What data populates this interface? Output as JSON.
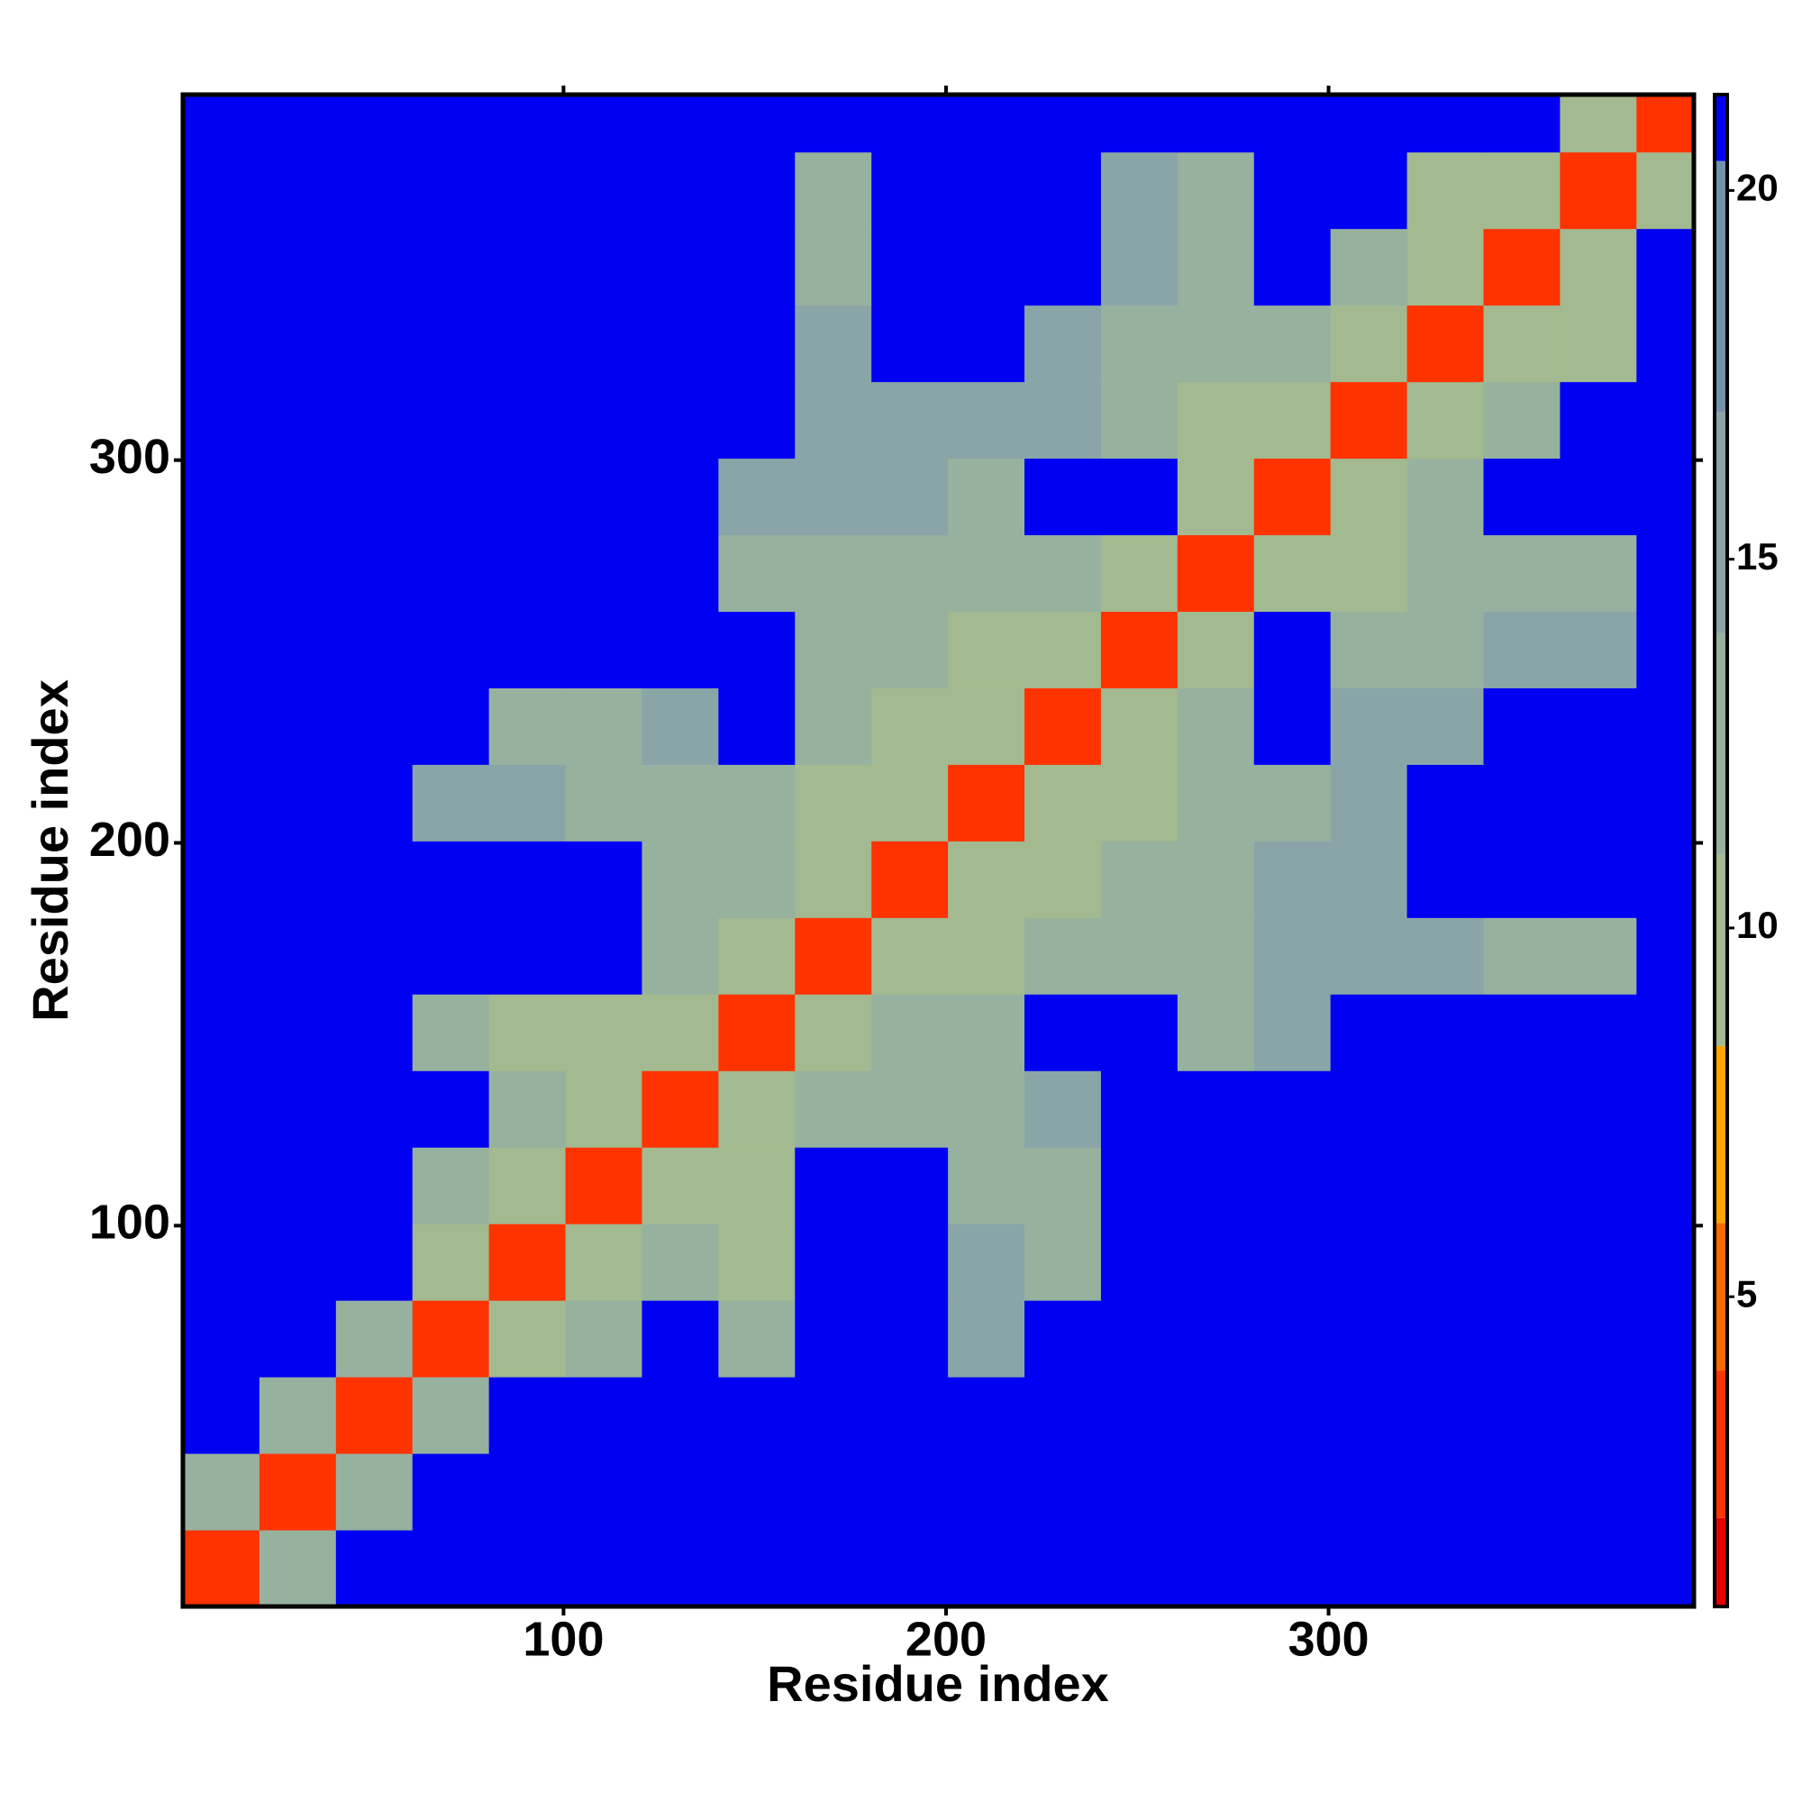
{
  "chart_data": {
    "type": "heatmap",
    "xlabel": "Residue index",
    "ylabel": "Residue index",
    "bins": [
      0.5,
      20.5,
      40.5,
      60.5,
      80.5,
      100.5,
      120.5,
      140.5,
      160.5,
      180.5,
      200.5,
      220.5,
      240.5,
      260.5,
      280.5,
      300.5,
      320.5,
      340.5,
      360.5,
      380.5,
      395.5
    ],
    "z": [
      [
        3,
        12,
        21,
        21,
        21,
        21,
        21,
        21,
        21,
        21,
        21,
        21,
        21,
        21,
        21,
        21,
        21,
        21,
        21,
        21
      ],
      [
        12,
        3,
        12,
        21,
        21,
        21,
        21,
        21,
        21,
        21,
        21,
        21,
        21,
        21,
        21,
        21,
        21,
        21,
        21,
        21
      ],
      [
        21,
        12,
        3,
        12,
        21,
        21,
        21,
        21,
        21,
        21,
        21,
        21,
        21,
        21,
        21,
        21,
        21,
        21,
        21,
        21
      ],
      [
        21,
        21,
        12,
        3,
        9,
        13,
        21,
        14,
        21,
        21,
        15,
        21,
        21,
        21,
        21,
        21,
        21,
        21,
        21,
        21
      ],
      [
        21,
        21,
        21,
        9,
        3,
        10,
        12,
        11,
        21,
        21,
        15,
        14,
        21,
        21,
        21,
        21,
        21,
        21,
        21,
        21
      ],
      [
        21,
        21,
        21,
        13,
        10,
        3,
        10,
        11,
        21,
        21,
        13,
        14,
        21,
        21,
        21,
        21,
        21,
        21,
        21,
        21
      ],
      [
        21,
        21,
        21,
        21,
        12,
        10,
        3,
        9,
        12,
        14,
        13,
        15,
        21,
        21,
        21,
        21,
        21,
        21,
        21,
        21
      ],
      [
        21,
        21,
        21,
        14,
        11,
        11,
        9,
        3,
        11,
        13,
        12,
        21,
        21,
        14,
        15,
        21,
        21,
        21,
        21,
        21
      ],
      [
        21,
        21,
        21,
        21,
        21,
        21,
        12,
        11,
        3,
        10,
        11,
        12,
        13,
        14,
        16,
        16,
        15,
        14,
        14,
        21
      ],
      [
        21,
        21,
        21,
        21,
        21,
        21,
        14,
        13,
        10,
        3,
        9,
        10,
        13,
        14,
        15,
        16,
        21,
        21,
        21,
        21
      ],
      [
        21,
        21,
        21,
        15,
        15,
        13,
        13,
        12,
        11,
        9,
        3,
        9,
        11,
        13,
        14,
        16,
        21,
        21,
        21,
        21
      ],
      [
        21,
        21,
        21,
        21,
        14,
        14,
        15,
        21,
        12,
        10,
        9,
        3,
        10,
        12,
        21,
        15,
        16,
        21,
        21,
        21
      ],
      [
        21,
        21,
        21,
        21,
        21,
        21,
        21,
        21,
        13,
        13,
        11,
        10,
        3,
        10,
        21,
        12,
        14,
        15,
        15,
        21
      ],
      [
        21,
        21,
        21,
        21,
        21,
        21,
        21,
        14,
        14,
        14,
        13,
        12,
        10,
        3,
        11,
        11,
        13,
        13,
        14,
        21
      ],
      [
        21,
        21,
        21,
        21,
        21,
        21,
        21,
        15,
        16,
        15,
        14,
        21,
        21,
        11,
        3,
        10,
        12,
        21,
        21,
        21
      ],
      [
        21,
        21,
        21,
        21,
        21,
        21,
        21,
        21,
        16,
        16,
        16,
        15,
        12,
        11,
        10,
        3,
        10,
        12,
        21,
        21
      ],
      [
        21,
        21,
        21,
        21,
        21,
        21,
        21,
        21,
        15,
        21,
        21,
        16,
        14,
        13,
        12,
        10,
        3,
        10,
        11,
        21
      ],
      [
        21,
        21,
        21,
        21,
        21,
        21,
        21,
        21,
        14,
        21,
        21,
        21,
        15,
        13,
        21,
        12,
        10,
        3,
        10,
        21
      ],
      [
        21,
        21,
        21,
        21,
        21,
        21,
        21,
        21,
        14,
        21,
        21,
        21,
        15,
        14,
        21,
        21,
        11,
        10,
        3,
        11
      ],
      [
        21,
        21,
        21,
        21,
        21,
        21,
        21,
        21,
        21,
        21,
        21,
        21,
        21,
        21,
        21,
        21,
        21,
        21,
        11,
        3
      ]
    ],
    "xlim": [
      0.5,
      395.5
    ],
    "ylim": [
      0.5,
      395.5
    ],
    "xticks": [
      100,
      200,
      300
    ],
    "yticks": [
      100,
      200,
      300
    ],
    "zlim": [
      0.8,
      21.3
    ],
    "zticks": [
      5,
      10,
      15,
      20
    ],
    "color_steps": [
      {
        "max": 2,
        "color": "#e60000"
      },
      {
        "max": 4,
        "color": "#ff3300"
      },
      {
        "max": 6,
        "color": "#ff6a00"
      },
      {
        "max": 8.4,
        "color": "#ffa500"
      },
      {
        "max": 11,
        "color": "#a3b98f"
      },
      {
        "max": 14,
        "color": "#97b19f"
      },
      {
        "max": 17,
        "color": "#8aa5a8"
      },
      {
        "max": 20.4,
        "color": "#7590ab"
      },
      {
        "max": 21.3,
        "color": "#0000f2"
      }
    ]
  }
}
